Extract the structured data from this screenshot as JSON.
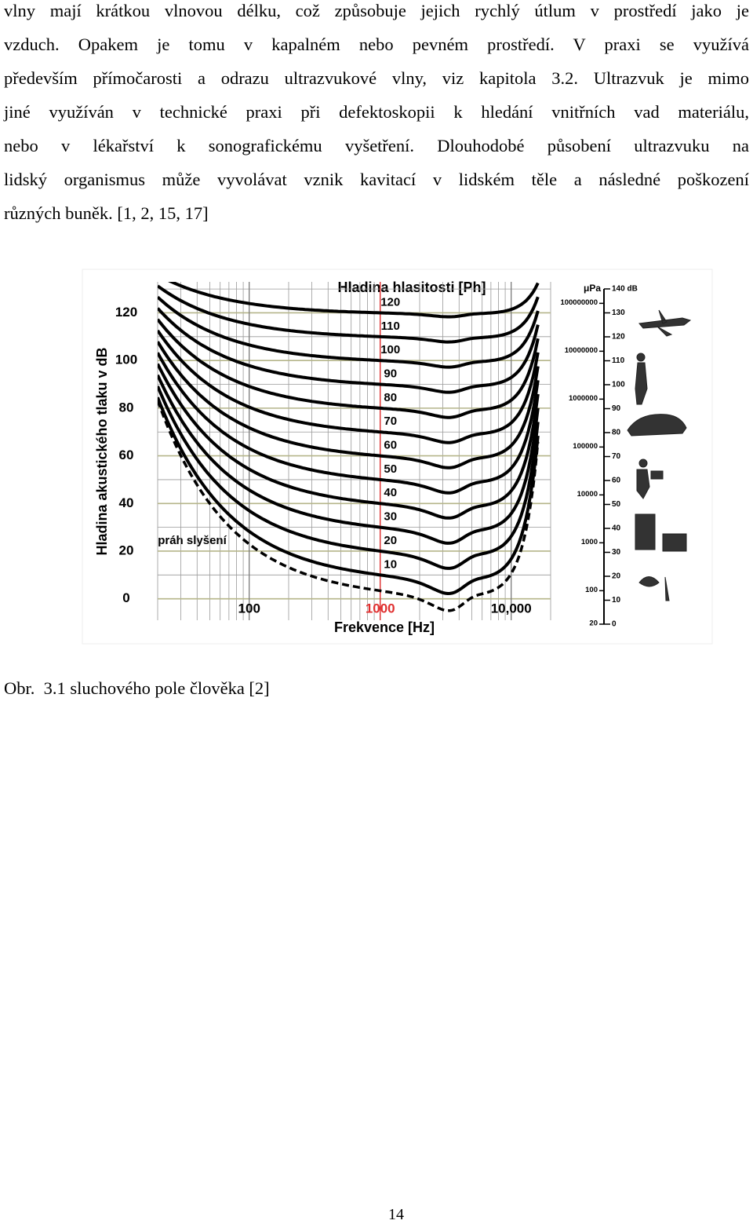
{
  "document": {
    "lines": [
      "vlny mají krátkou vlnovou délku, což způsobuje jejich rychlý útlum v prostředí jako je",
      "vzduch. Opakem je tomu v kapalném nebo pevném prostředí. V praxi se využívá",
      "především přímočarosti a odrazu ultrazvukové vlny, viz kapitola 3.2. Ultrazvuk je mimo",
      "jiné využíván v technické praxi při defektoskopii k hledání vnitřních vad materiálu,",
      "nebo v lékařství k sonografickému vyšetření. Dlouhodobé působení ultrazvuku na",
      "lidský organismus může vyvolávat vznik kavitací v lidském těle a následné poškození",
      "různých buněk. [1, 2, 15, 17]"
    ],
    "caption": "Obr.  3.1 sluchového pole člověka [2]",
    "page_number": "14"
  },
  "chart_data": {
    "type": "line",
    "title": "Hladina hlasitosti [Ph]",
    "x_label": "Frekvence [Hz]",
    "y_label": "Hladina akustického tlaku v dB",
    "log_x": true,
    "xlim": [
      20,
      20000
    ],
    "ylim": [
      -9,
      133
    ],
    "xticks": [
      100,
      1000,
      {
        "value": 10000,
        "label": "10,000"
      }
    ],
    "yticks": [
      0,
      20,
      40,
      60,
      80,
      100,
      120
    ],
    "contour_levels": [
      10,
      20,
      30,
      40,
      50,
      60,
      70,
      80,
      90,
      100,
      110,
      120
    ],
    "threshold_label": "práh slyšení",
    "color": "#000000",
    "grid_color": "#b5b58a",
    "reference_color": "#e03030"
  },
  "scale": {
    "pressure_unit": "μPa",
    "pressure_ticks": [
      20,
      100,
      1000,
      10000,
      100000,
      1000000,
      10000000,
      100000000
    ],
    "db_lim": [
      0,
      140
    ],
    "db_ticks": [
      0,
      10,
      20,
      30,
      40,
      50,
      60,
      70,
      80,
      90,
      100,
      110,
      120,
      130,
      {
        "value": 140,
        "label": "140 dB"
      }
    ]
  }
}
